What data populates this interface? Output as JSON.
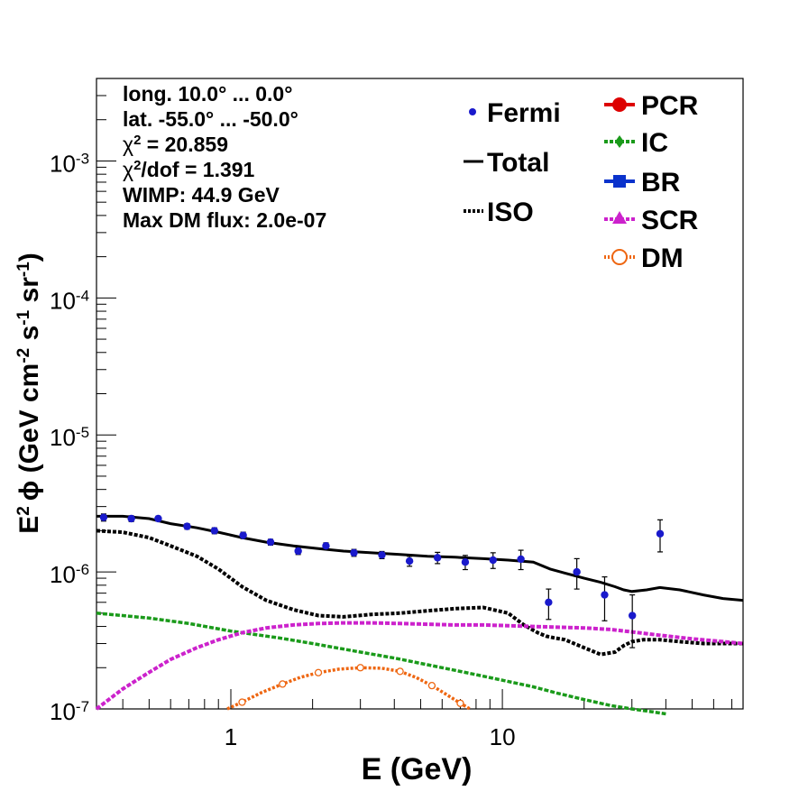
{
  "chart_data": {
    "type": "line",
    "x_scale": "log",
    "y_scale": "log",
    "xlim": [
      0.32,
      77
    ],
    "ylim": [
      1e-07,
      0.004
    ],
    "xlabel": "E (GeV)",
    "ylabel": {
      "prefix": "E",
      "prefix_sup": "2",
      "phi": "ϕ",
      "units_main": " (GeV cm",
      "sup1": "-2",
      "mid": " s",
      "sup2": "-1",
      "mid2": " sr",
      "sup3": "-1",
      "close": ")"
    },
    "x_ticks": [
      {
        "value": 1,
        "label": "1"
      },
      {
        "value": 10,
        "label": "10"
      }
    ],
    "y_ticks": [
      {
        "value": 1e-07,
        "base": "10",
        "exp": "-7"
      },
      {
        "value": 1e-06,
        "base": "10",
        "exp": "-6"
      },
      {
        "value": 1e-05,
        "base": "10",
        "exp": "-5"
      },
      {
        "value": 0.0001,
        "base": "10",
        "exp": "-4"
      },
      {
        "value": 0.001,
        "base": "10",
        "exp": "-3"
      }
    ],
    "info_box": {
      "long": "long. 10.0° ... 0.0°",
      "lat": "lat. -55.0° ... -50.0°",
      "chi2_sym": "χ",
      "chi2_sup": "2",
      "chi2_val": " = 20.859",
      "chi2dof_sym": "χ",
      "chi2dof_sup": "2",
      "chi2dof_val": "/dof = 1.391",
      "wimp": "WIMP: 44.9 GeV",
      "maxdm": "Max DM flux: 2.0e-07"
    },
    "legend_left": [
      {
        "label": "Fermi",
        "style": "points",
        "color": "#1a1acc"
      },
      {
        "label": "Total",
        "style": "solid",
        "color": "#000000"
      },
      {
        "label": "ISO",
        "style": "dotted",
        "color": "#000000"
      }
    ],
    "legend_right": [
      {
        "label": "PCR",
        "marker": "circle",
        "color": "#dd0000"
      },
      {
        "label": "IC",
        "marker": "diamond",
        "color": "#1a9a1a"
      },
      {
        "label": "BR",
        "marker": "square",
        "color": "#0a32cc"
      },
      {
        "label": "SCR",
        "marker": "triangle",
        "color": "#cc22cc"
      },
      {
        "label": "DM",
        "marker": "open-circle",
        "color": "#ee6611"
      }
    ],
    "series": [
      {
        "name": "Fermi",
        "color": "#1a1acc",
        "points": [
          {
            "x": 0.34,
            "y": 2.5e-06,
            "err": 1.5e-07
          },
          {
            "x": 0.43,
            "y": 2.45e-06,
            "err": 1.2e-07
          },
          {
            "x": 0.54,
            "y": 2.45e-06,
            "err": 1e-07
          },
          {
            "x": 0.69,
            "y": 2.15e-06,
            "err": 1e-07
          },
          {
            "x": 0.87,
            "y": 2e-06,
            "err": 1e-07
          },
          {
            "x": 1.11,
            "y": 1.85e-06,
            "err": 1e-07
          },
          {
            "x": 1.4,
            "y": 1.65e-06,
            "err": 8e-08
          },
          {
            "x": 1.77,
            "y": 1.42e-06,
            "err": 8e-08
          },
          {
            "x": 2.24,
            "y": 1.55e-06,
            "err": 8e-08
          },
          {
            "x": 2.84,
            "y": 1.38e-06,
            "err": 8e-08
          },
          {
            "x": 3.6,
            "y": 1.33e-06,
            "err": 8e-08
          },
          {
            "x": 4.55,
            "y": 1.2e-06,
            "err": 1e-07
          },
          {
            "x": 5.77,
            "y": 1.27e-06,
            "err": 1.2e-07
          },
          {
            "x": 7.3,
            "y": 1.18e-06,
            "err": 1.4e-07
          },
          {
            "x": 9.24,
            "y": 1.22e-06,
            "err": 1.6e-07
          },
          {
            "x": 11.7,
            "y": 1.24e-06,
            "err": 2e-07
          },
          {
            "x": 14.8,
            "y": 6e-07,
            "err": 1.5e-07
          },
          {
            "x": 18.8,
            "y": 1e-06,
            "err": 2.5e-07
          },
          {
            "x": 23.8,
            "y": 6.8e-07,
            "err": 2.4e-07
          },
          {
            "x": 30.1,
            "y": 4.8e-07,
            "err": 2e-07
          },
          {
            "x": 38.1,
            "y": 1.9e-06,
            "err": 5e-07
          }
        ]
      },
      {
        "name": "Total",
        "color": "#000000",
        "x": [
          0.32,
          0.4,
          0.5,
          0.6,
          0.75,
          0.9,
          1.1,
          1.35,
          1.7,
          2.1,
          2.6,
          3.3,
          4.2,
          5.3,
          6.7,
          8.5,
          10.5,
          13,
          15,
          17,
          20,
          23,
          26,
          28,
          30,
          34,
          38,
          45,
          55,
          65,
          77
        ],
        "y": [
          2.55e-06,
          2.55e-06,
          2.45e-06,
          2.25e-06,
          2.1e-06,
          1.95e-06,
          1.78e-06,
          1.65e-06,
          1.55e-06,
          1.48e-06,
          1.42e-06,
          1.38e-06,
          1.34e-06,
          1.3e-06,
          1.28e-06,
          1.25e-06,
          1.22e-06,
          1.18e-06,
          1.05e-06,
          9.8e-07,
          9e-07,
          8.4e-07,
          7.8e-07,
          7.4e-07,
          7.2e-07,
          7.4e-07,
          7.7e-07,
          7.4e-07,
          6.8e-07,
          6.4e-07,
          6.2e-07
        ]
      },
      {
        "name": "ISO",
        "color": "#000000",
        "x": [
          0.32,
          0.4,
          0.5,
          0.6,
          0.75,
          0.9,
          1.1,
          1.35,
          1.7,
          2.1,
          2.6,
          3.3,
          4.2,
          5.3,
          6.7,
          8.5,
          10.5,
          12,
          13.5,
          14.5,
          15.5,
          17,
          20,
          23,
          26,
          28,
          30,
          33,
          38,
          45,
          55,
          65,
          77
        ],
        "y": [
          2e-06,
          1.95e-06,
          1.78e-06,
          1.55e-06,
          1.3e-06,
          1.05e-06,
          7.8e-07,
          6.2e-07,
          5.3e-07,
          4.8e-07,
          4.7e-07,
          4.9e-07,
          5e-07,
          5.2e-07,
          5.4e-07,
          5.5e-07,
          5e-07,
          4.1e-07,
          3.6e-07,
          3.4e-07,
          3.3e-07,
          3.2e-07,
          2.8e-07,
          2.5e-07,
          2.6e-07,
          2.9e-07,
          3.1e-07,
          3.2e-07,
          3.2e-07,
          3.1e-07,
          3e-07,
          3e-07,
          3e-07
        ]
      },
      {
        "name": "IC",
        "color": "#1a9a1a",
        "x": [
          0.32,
          0.5,
          0.7,
          1.0,
          1.5,
          2.0,
          3.0,
          4.0,
          6.0,
          8.0,
          10,
          13,
          16,
          20,
          25,
          30,
          36,
          40
        ],
        "y": [
          5e-07,
          4.6e-07,
          4.2e-07,
          3.7e-07,
          3.3e-07,
          3e-07,
          2.6e-07,
          2.35e-07,
          2e-07,
          1.78e-07,
          1.62e-07,
          1.45e-07,
          1.3e-07,
          1.17e-07,
          1.06e-07,
          1e-07,
          9.5e-08,
          9.2e-08
        ]
      },
      {
        "name": "SCR",
        "color": "#cc22cc",
        "x": [
          0.32,
          0.4,
          0.5,
          0.6,
          0.75,
          0.9,
          1.1,
          1.35,
          1.7,
          2.1,
          2.6,
          3.3,
          4.2,
          5.3,
          6.7,
          8.5,
          10.5,
          13,
          16,
          20,
          25,
          30,
          38,
          50,
          65,
          77
        ],
        "y": [
          1e-07,
          1.4e-07,
          1.85e-07,
          2.3e-07,
          2.8e-07,
          3.2e-07,
          3.6e-07,
          3.9e-07,
          4.1e-07,
          4.2e-07,
          4.25e-07,
          4.25e-07,
          4.2e-07,
          4.15e-07,
          4.1e-07,
          4.1e-07,
          4.05e-07,
          4e-07,
          3.95e-07,
          3.9e-07,
          3.8e-07,
          3.65e-07,
          3.45e-07,
          3.25e-07,
          3.1e-07,
          3e-07
        ]
      },
      {
        "name": "DM",
        "color": "#ee6611",
        "x": [
          0.97,
          1.1,
          1.3,
          1.55,
          1.8,
          2.1,
          2.5,
          3.0,
          3.6,
          4.2,
          4.8,
          5.5,
          6.2,
          7.0,
          7.6
        ],
        "y": [
          1e-07,
          1.12e-07,
          1.32e-07,
          1.52e-07,
          1.7e-07,
          1.84e-07,
          1.95e-07,
          2e-07,
          1.98e-07,
          1.88e-07,
          1.7e-07,
          1.48e-07,
          1.28e-07,
          1.1e-07,
          1e-07
        ]
      }
    ]
  }
}
